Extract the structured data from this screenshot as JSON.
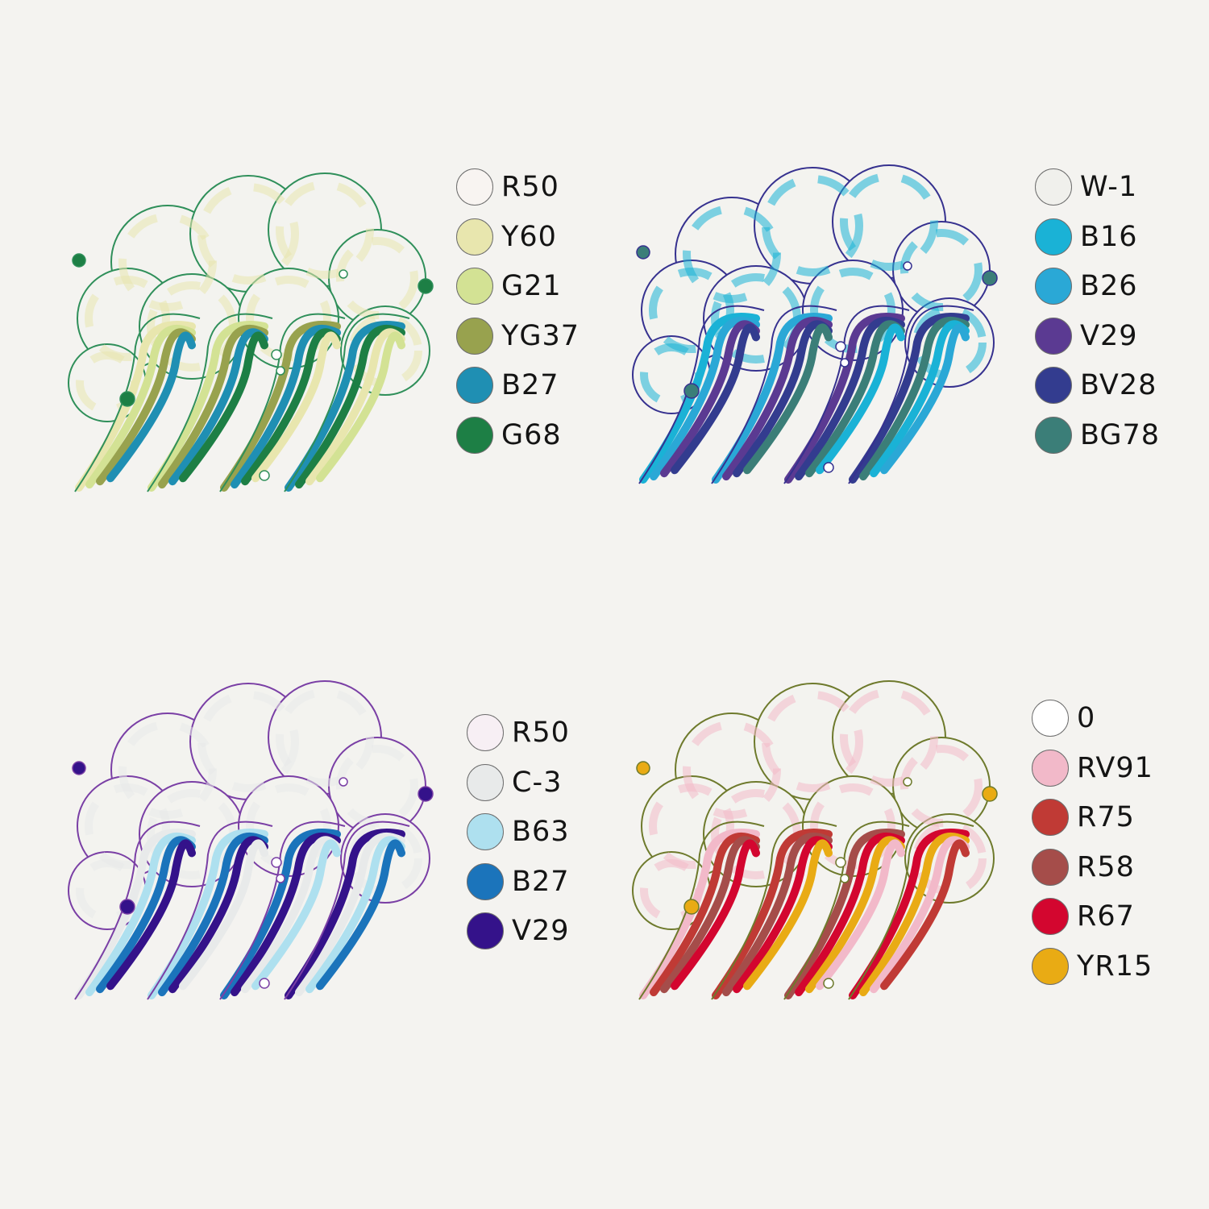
{
  "panels": [
    {
      "name": "green",
      "outline_color": "#2f8f5a",
      "swatches": [
        {
          "label": "R50",
          "color": "#f8f4f1"
        },
        {
          "label": "Y60",
          "color": "#e8e6ae"
        },
        {
          "label": "G21",
          "color": "#d3e294"
        },
        {
          "label": "YG37",
          "color": "#98a24e"
        },
        {
          "label": "B27",
          "color": "#1f8fb3"
        },
        {
          "label": "G68",
          "color": "#1d7f45"
        }
      ]
    },
    {
      "name": "blue",
      "outline_color": "#36318f",
      "swatches": [
        {
          "label": "W-1",
          "color": "#f0f0ec"
        },
        {
          "label": "B16",
          "color": "#1ab2d6"
        },
        {
          "label": "B26",
          "color": "#2aa8d6"
        },
        {
          "label": "V29",
          "color": "#5b3a92"
        },
        {
          "label": "BV28",
          "color": "#333c8f"
        },
        {
          "label": "BG78",
          "color": "#3b7e78"
        }
      ]
    },
    {
      "name": "violet",
      "outline_color": "#7a3fa5",
      "swatches": [
        {
          "label": "R50",
          "color": "#f7eff4"
        },
        {
          "label": "C-3",
          "color": "#e8eaea"
        },
        {
          "label": "B63",
          "color": "#aee0ef"
        },
        {
          "label": "B27",
          "color": "#1b74bb"
        },
        {
          "label": "V29",
          "color": "#34128a"
        }
      ]
    },
    {
      "name": "red",
      "outline_color": "#6e7a2c",
      "swatches": [
        {
          "label": "0",
          "color": "#ffffff"
        },
        {
          "label": "RV91",
          "color": "#f2b9c9"
        },
        {
          "label": "R75",
          "color": "#c03a35"
        },
        {
          "label": "R58",
          "color": "#a54d4a"
        },
        {
          "label": "R67",
          "color": "#d3062f"
        },
        {
          "label": "YR15",
          "color": "#e9ab14"
        }
      ]
    }
  ]
}
